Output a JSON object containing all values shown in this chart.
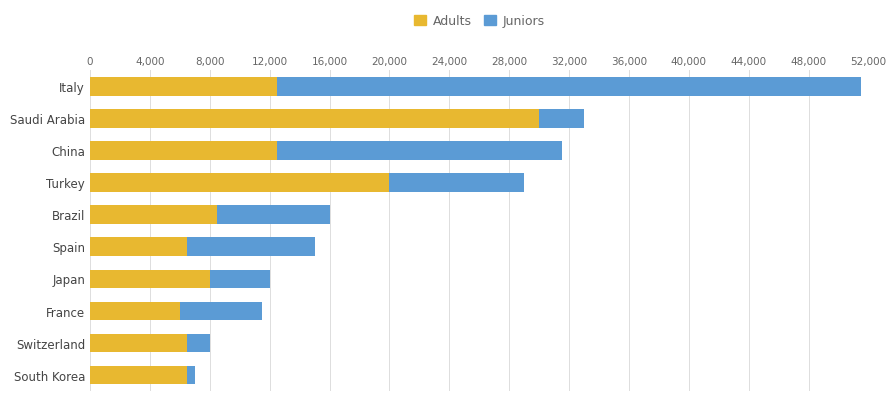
{
  "countries": [
    "Italy",
    "Saudi Arabia",
    "China",
    "Turkey",
    "Brazil",
    "Spain",
    "Japan",
    "France",
    "Switzerland",
    "South Korea"
  ],
  "adults": [
    12500,
    30000,
    12500,
    20000,
    8500,
    6500,
    8000,
    6000,
    6500,
    6500
  ],
  "juniors": [
    39000,
    3000,
    19000,
    9000,
    7500,
    8500,
    4000,
    5500,
    1500,
    500
  ],
  "adult_color": "#E8B830",
  "junior_color": "#5B9BD5",
  "bg_color": "#FFFFFF",
  "bar_height": 0.58,
  "xlim": [
    0,
    52000
  ],
  "xticks": [
    0,
    4000,
    8000,
    12000,
    16000,
    20000,
    24000,
    28000,
    32000,
    36000,
    40000,
    44000,
    48000,
    52000
  ],
  "xtick_labels": [
    "0",
    "4,000",
    "8,000",
    "12,000",
    "16,000",
    "20,000",
    "24,000",
    "28,000",
    "32,000",
    "36,000",
    "40,000",
    "44,000",
    "48,000",
    "52,000"
  ],
  "legend_adults": "Adults",
  "legend_juniors": "Juniors",
  "grid_color": "#DDDDDD",
  "axis_label_color": "#666666",
  "country_label_color": "#444444",
  "tick_fontsize": 7.5,
  "label_fontsize": 8.5,
  "map_countries_highlight": [
    "Italy",
    "Saudi Arabia",
    "China",
    "Turkey",
    "Brazil",
    "Spain",
    "Japan",
    "France",
    "Switzerland",
    "South Korea"
  ],
  "map_highlight_color": "#888888",
  "map_base_color": "#CCCCCC",
  "map_edge_color": "#FFFFFF",
  "map_alpha": 0.38
}
